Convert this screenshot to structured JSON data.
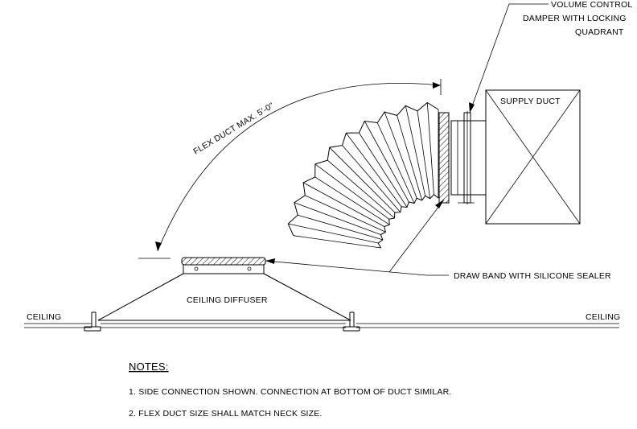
{
  "labels": {
    "damper_line1": "VOLUME CONTROL",
    "damper_line2": "DAMPER WITH LOCKING",
    "damper_line3": "QUADRANT",
    "supply_duct": "SUPPLY DUCT",
    "flex_duct": "FLEX DUCT MAX. 5'-0\"",
    "draw_band": "DRAW BAND WITH SILICONE SEALER",
    "ceiling_diffuser": "CEILING DIFFUSER",
    "ceiling_left": "CEILING",
    "ceiling_right": "CEILING"
  },
  "notes": {
    "heading": "NOTES:",
    "items": [
      "1. SIDE CONNECTION SHOWN. CONNECTION AT BOTTOM OF DUCT SIMILAR.",
      "2. FLEX DUCT SIZE SHALL MATCH NECK SIZE."
    ]
  }
}
